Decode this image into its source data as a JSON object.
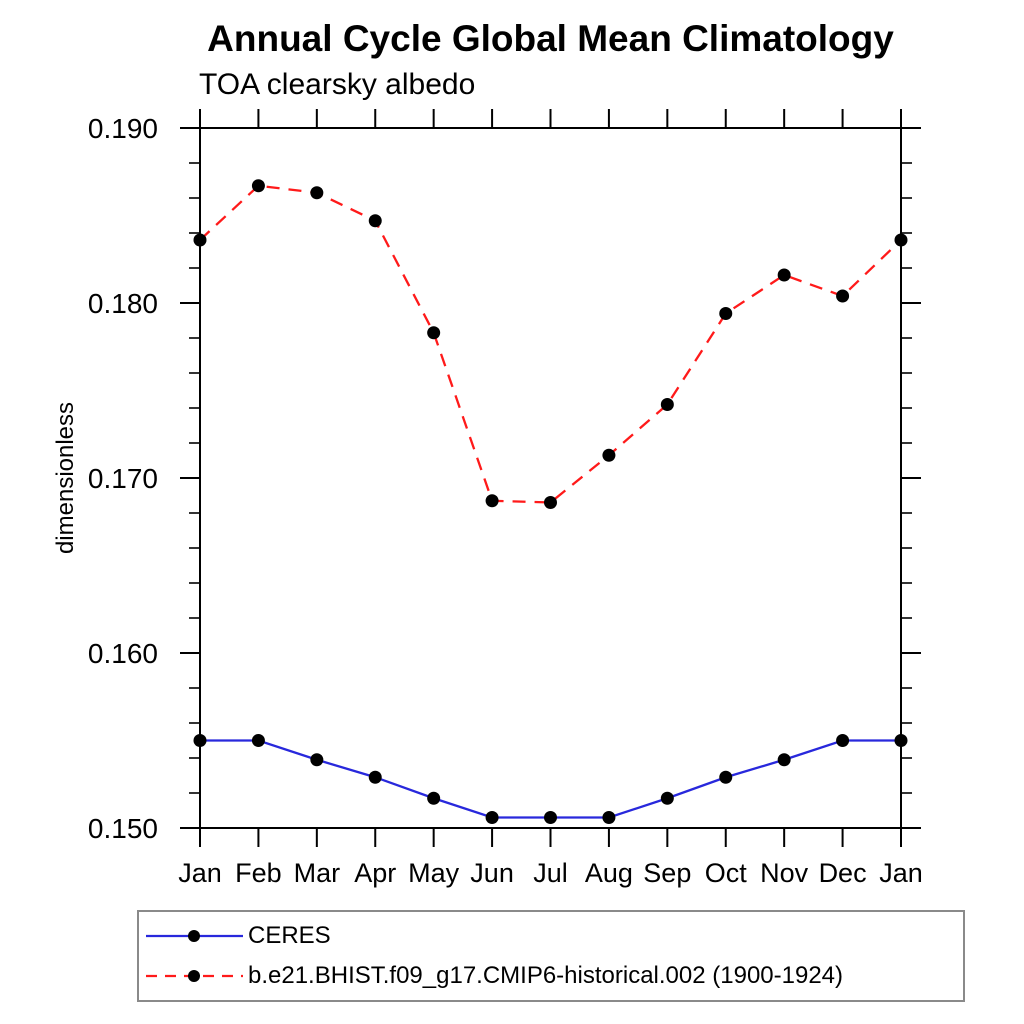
{
  "header": {
    "title": "Annual Cycle Global Mean Climatology",
    "subtitle": "TOA clearsky albedo"
  },
  "chart_data": {
    "type": "line",
    "title": "Annual Cycle Global Mean Climatology",
    "subtitle": "TOA clearsky albedo",
    "xlabel": "",
    "ylabel": "dimensionless",
    "categories": [
      "Jan",
      "Feb",
      "Mar",
      "Apr",
      "May",
      "Jun",
      "Jul",
      "Aug",
      "Sep",
      "Oct",
      "Nov",
      "Dec",
      "Jan"
    ],
    "ylim": [
      0.15,
      0.19
    ],
    "ytick_major": [
      0.15,
      0.16,
      0.17,
      0.18,
      0.19
    ],
    "ytick_labels": [
      "0.150",
      "0.160",
      "0.170",
      "0.180",
      "0.190"
    ],
    "ytick_minor_step": 0.002,
    "grid": false,
    "legend_position": "bottom-left",
    "axis_color": "#000000",
    "marker_color": "#000000",
    "series": [
      {
        "name": "CERES",
        "color": "#2828dc",
        "line_style": "solid",
        "marker": "circle",
        "values": [
          0.155,
          0.155,
          0.1539,
          0.1529,
          0.1517,
          0.1506,
          0.1506,
          0.1506,
          0.1517,
          0.1529,
          0.1539,
          0.155,
          0.155
        ]
      },
      {
        "name": "b.e21.BHIST.f09_g17.CMIP6-historical.002 (1900-1924)",
        "color": "#ff1a1a",
        "line_style": "dashed",
        "marker": "circle",
        "values": [
          0.1836,
          0.1867,
          0.1863,
          0.1847,
          0.1783,
          0.1687,
          0.1686,
          0.1713,
          0.1742,
          0.1794,
          0.1816,
          0.1804,
          0.1836
        ]
      }
    ]
  }
}
